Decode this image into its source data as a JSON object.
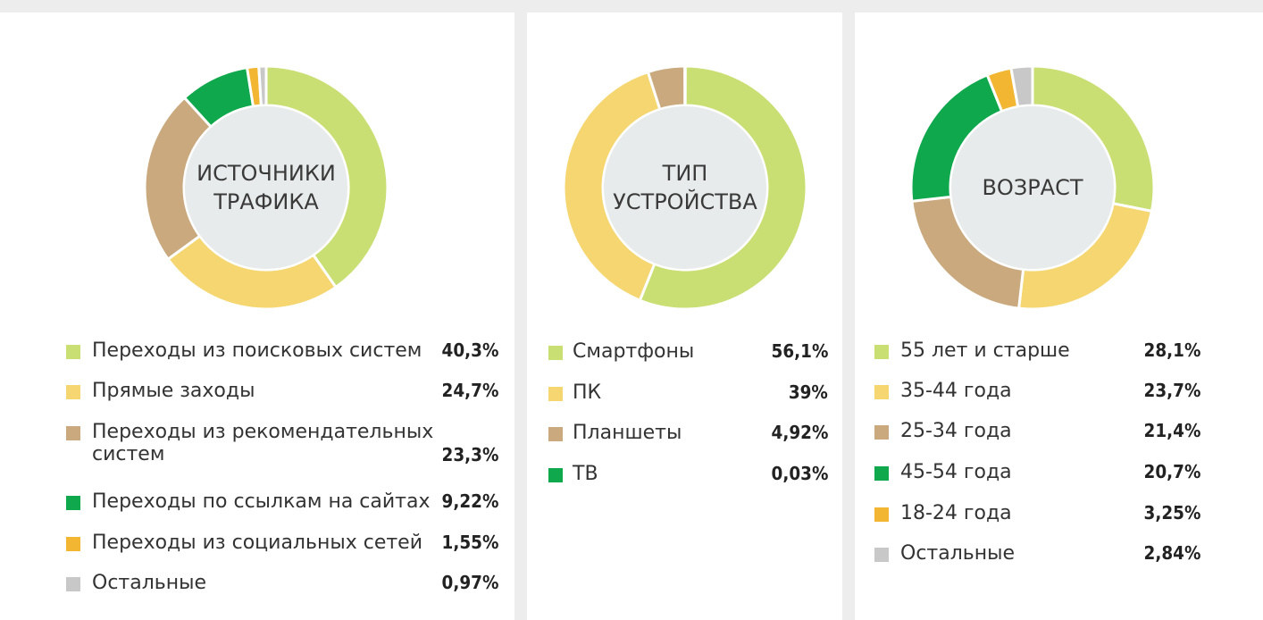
{
  "colors": {
    "light_green": "#c9df74",
    "yellow": "#f5d670",
    "tan": "#c9a97d",
    "green": "#0fa84c",
    "orange": "#f2b632",
    "gray": "#c8c8c8",
    "center": "#e8ebeb"
  },
  "chart_data": [
    {
      "type": "pie",
      "title": "ИСТОЧНИКИ ТРАФИКА",
      "title_lines": [
        "ИСТОЧНИКИ",
        "ТРАФИКА"
      ],
      "categories": [
        "Переходы из поисковых систем",
        "Прямые заходы",
        "Переходы из рекомендательных систем",
        "Переходы по ссылкам на сайтах",
        "Переходы из социальных сетей",
        "Остальные"
      ],
      "label_lines": [
        [
          "Переходы из поисковых систем"
        ],
        [
          "Прямые заходы"
        ],
        [
          "Переходы из рекомендательных",
          "систем"
        ],
        [
          "Переходы по ссылкам на сайтах"
        ],
        [
          "Переходы из социальных сетей"
        ],
        [
          "Остальные"
        ]
      ],
      "values": [
        40.3,
        24.7,
        23.3,
        9.22,
        1.55,
        0.97
      ],
      "value_labels": [
        "40,3%",
        "24,7%",
        "23,3%",
        "9,22%",
        "1,55%",
        "0,97%"
      ],
      "colors": [
        "#c9df74",
        "#f5d670",
        "#c9a97d",
        "#0fa84c",
        "#f2b632",
        "#c8c8c8"
      ],
      "legend_position": "bottom"
    },
    {
      "type": "pie",
      "title": "ТИП УСТРОЙСТВА",
      "title_lines": [
        "ТИП",
        "УСТРОЙСТВА"
      ],
      "categories": [
        "Смартфоны",
        "ПК",
        "Планшеты",
        "ТВ"
      ],
      "label_lines": [
        [
          "Смартфоны"
        ],
        [
          "ПК"
        ],
        [
          "Планшеты"
        ],
        [
          "ТВ"
        ]
      ],
      "values": [
        56.1,
        39,
        4.92,
        0.03
      ],
      "value_labels": [
        "56,1%",
        "39%",
        "4,92%",
        "0,03%"
      ],
      "colors": [
        "#c9df74",
        "#f5d670",
        "#c9a97d",
        "#0fa84c"
      ],
      "legend_position": "bottom"
    },
    {
      "type": "pie",
      "title": "ВОЗРАСТ",
      "title_lines": [
        "ВОЗРАСТ"
      ],
      "categories": [
        "55 лет и старше",
        "35-44 года",
        "25-34 года",
        "45-54 года",
        "18-24 года",
        "Остальные"
      ],
      "label_lines": [
        [
          "55 лет и старше"
        ],
        [
          "35-44 года"
        ],
        [
          "25-34 года"
        ],
        [
          "45-54 года"
        ],
        [
          "18-24 года"
        ],
        [
          "Остальные"
        ]
      ],
      "values": [
        28.1,
        23.7,
        21.4,
        20.7,
        3.25,
        2.84
      ],
      "value_labels": [
        "28,1%",
        "23,7%",
        "21,4%",
        "20,7%",
        "3,25%",
        "2,84%"
      ],
      "colors": [
        "#c9df74",
        "#f5d670",
        "#c9a97d",
        "#0fa84c",
        "#f2b632",
        "#c8c8c8"
      ],
      "legend_position": "bottom"
    }
  ]
}
